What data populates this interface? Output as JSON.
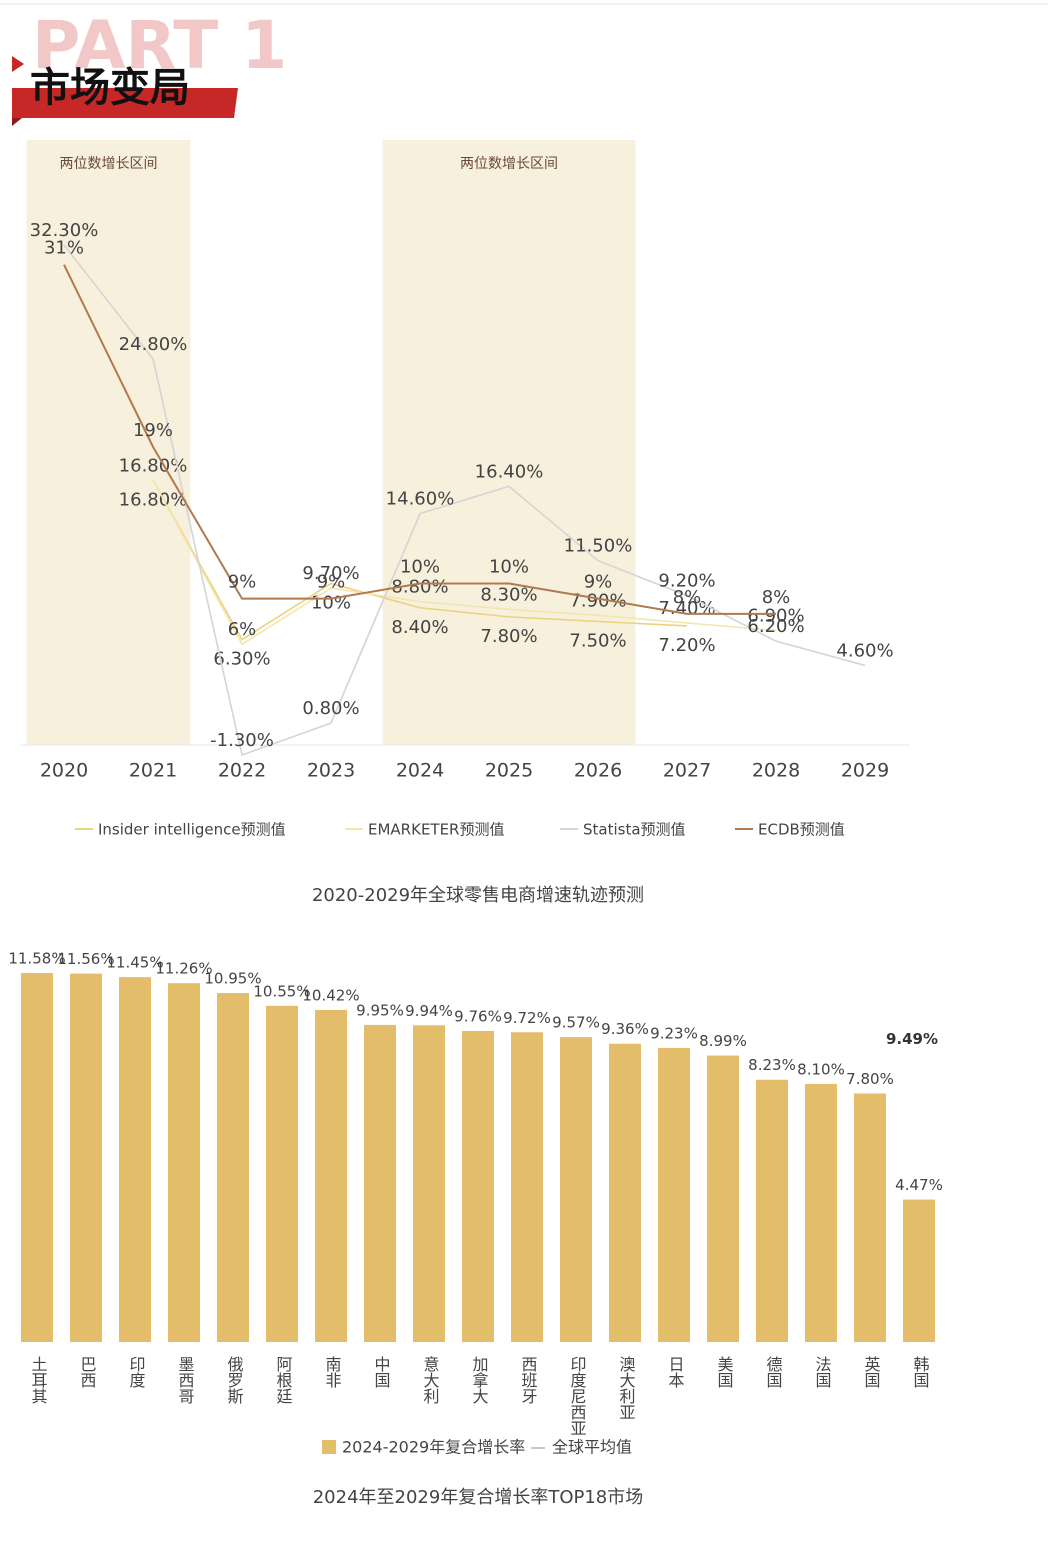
{
  "header": {
    "part": "PART 1",
    "title": "市场变局"
  },
  "chart_data": [
    {
      "type": "line",
      "title": "2020-2029年全球零售电商增速轨迹预测",
      "categories": [
        "2020",
        "2021",
        "2022",
        "2023",
        "2024",
        "2025",
        "2026",
        "2027",
        "2028",
        "2029"
      ],
      "bands": [
        {
          "label": "两位数增长区间",
          "from": "2020",
          "to": "2021"
        },
        {
          "label": "两位数增长区间",
          "from": "2024",
          "to": "2026"
        }
      ],
      "series": [
        {
          "name": "Insider intelligence预测值",
          "color": "#ecd27e",
          "values": [
            null,
            16.8,
            6.3,
            10,
            8.4,
            7.8,
            7.5,
            7.2,
            null,
            null
          ],
          "value_labels": [
            null,
            "16.80%",
            "6.30%",
            "10%",
            "8.40%",
            "7.80%",
            "7.50%",
            "7.20%",
            null,
            null
          ]
        },
        {
          "name": "EMARKETER预测值",
          "color": "#f3e6b0",
          "values": [
            null,
            16.8,
            6,
            9.7,
            8.8,
            8.3,
            7.9,
            7.4,
            6.9,
            null
          ],
          "value_labels": [
            null,
            "16.80%",
            "6%",
            "9.70%",
            "8.80%",
            "8.30%",
            "7.90%",
            "7.40%",
            "6.90%",
            null
          ]
        },
        {
          "name": "Statista预测值",
          "color": "#d4d4d4",
          "values": [
            32.3,
            24.8,
            -1.3,
            0.8,
            14.6,
            16.4,
            11.5,
            9.2,
            6.2,
            4.6
          ],
          "value_labels": [
            "32.30%",
            "24.80%",
            "-1.30%",
            "0.80%",
            "14.60%",
            "16.40%",
            "11.50%",
            "9.20%",
            "6.20%",
            "4.60%"
          ]
        },
        {
          "name": "ECDB预测值",
          "color": "#b07a4e",
          "values": [
            31,
            19,
            9,
            9,
            10,
            10,
            9,
            8,
            8,
            null
          ],
          "value_labels": [
            "31%",
            "19%",
            "9%",
            "9%",
            "10%",
            "10%",
            "9%",
            "8%",
            "8%",
            null
          ]
        }
      ]
    },
    {
      "type": "bar",
      "title": "2024年至2029年复合增长率TOP18市场",
      "categories": [
        "土耳其",
        "巴西",
        "印度",
        "墨西哥",
        "俄罗斯",
        "阿根廷",
        "南非",
        "中国",
        "意大利",
        "加拿大",
        "西班牙",
        "印度尼西亚",
        "澳大利亚",
        "日本",
        "美国",
        "德国",
        "法国",
        "英国",
        "韩国"
      ],
      "series": [
        {
          "name": "2024-2029年复合增长率",
          "color": "#e3bd6a",
          "values": [
            11.58,
            11.56,
            11.45,
            11.26,
            10.95,
            10.55,
            10.42,
            9.95,
            9.94,
            9.76,
            9.72,
            9.57,
            9.36,
            9.23,
            8.99,
            8.23,
            8.1,
            7.8,
            4.47
          ],
          "value_labels": [
            "11.58%",
            "11.56%",
            "11.45%",
            "11.26%",
            "10.95%",
            "10.55%",
            "10.42%",
            "9.95%",
            "9.94%",
            "9.76%",
            "9.72%",
            "9.57%",
            "9.36%",
            "9.23%",
            "8.99%",
            "8.23%",
            "8.10%",
            "7.80%",
            "4.47%"
          ]
        }
      ],
      "reference": {
        "name": "全球平均值",
        "value": 9.49,
        "label": "9.49%"
      }
    }
  ]
}
